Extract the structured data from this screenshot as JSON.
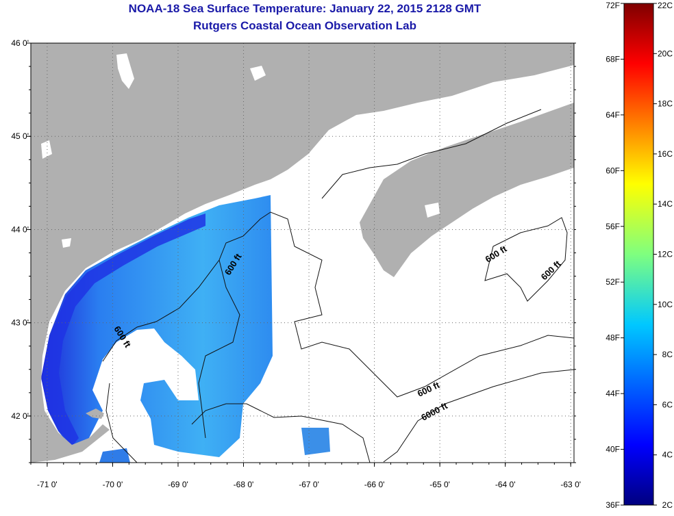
{
  "title": {
    "line1": "NOAA-18 Sea Surface Temperature:  January 22, 2015 2128 GMT",
    "line2": "Rutgers Coastal Ocean Observation Lab"
  },
  "map": {
    "lon_range": [
      -71.25,
      -62.95
    ],
    "lat_range": [
      41.5,
      46.0
    ],
    "lon_ticks": [
      "-71 0'",
      "-70 0'",
      "-69 0'",
      "-68 0'",
      "-67 0'",
      "-66 0'",
      "-65 0'",
      "-64 0'",
      "-63 0'"
    ],
    "lat_ticks": [
      "46 0'",
      "45 0'",
      "44 0'",
      "43 0'",
      "42 0'"
    ],
    "contour_labels": [
      "600 ft",
      "600 ft",
      "600 ft",
      "600 ft",
      "600 ft",
      "6000 ft"
    ],
    "colors": {
      "land": "#b0b0b0",
      "grid": "#555555",
      "sst_dark": "#1e2ee0",
      "sst_mid": "#2b7bf0",
      "sst_light": "#3aa8f2"
    }
  },
  "colorbar": {
    "fahrenheit": [
      "72F",
      "68F",
      "64F",
      "60F",
      "56F",
      "52F",
      "48F",
      "44F",
      "40F",
      "36F"
    ],
    "celsius": [
      "22C",
      "20C",
      "18C",
      "16C",
      "14C",
      "12C",
      "10C",
      "8C",
      "6C",
      "4C",
      "2C"
    ],
    "range_f": [
      36,
      72
    ],
    "range_c": [
      2,
      22
    ]
  }
}
